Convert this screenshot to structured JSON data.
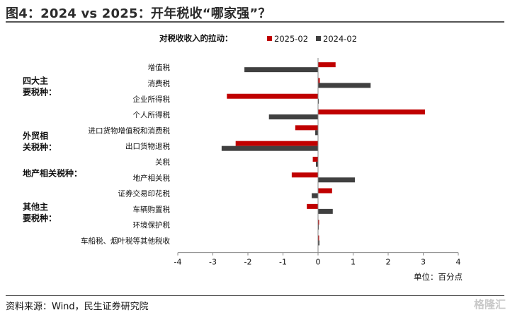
{
  "page": {
    "title": "图4：2024 vs 2025：开年税收“哪家强”？",
    "source": "资料来源：Wind，民生证券研究院",
    "watermark": "格隆汇"
  },
  "chart_data": {
    "type": "bar",
    "orientation": "horizontal",
    "title": "对税收收入的拉动：",
    "unit_label": "单位：百分点",
    "categories": [
      "增值税",
      "消费税",
      "企业所得税",
      "个人所得税",
      "进口货物增值税和消费税",
      "出口货物退税",
      "关税",
      "地产相关税",
      "证券交易印花税",
      "车辆购置税",
      "环境保护税",
      "车船税、烟叶税等其他税收"
    ],
    "series": [
      {
        "name": "2025-02",
        "color": "#C00000",
        "values": [
          0.5,
          0.05,
          -2.6,
          3.05,
          -0.65,
          -2.35,
          -0.15,
          -0.75,
          0.4,
          -0.32,
          0.03,
          0.03
        ]
      },
      {
        "name": "2024-02",
        "color": "#404040",
        "values": [
          -2.1,
          1.5,
          0.02,
          -1.4,
          -0.08,
          -2.75,
          -0.06,
          1.05,
          -0.18,
          0.42,
          0.02,
          0.04
        ]
      }
    ],
    "groups": [
      {
        "label_lines": [
          "四大主",
          "要税种："
        ],
        "first": 0,
        "last": 3
      },
      {
        "label_lines": [
          "外贸相",
          "关税种："
        ],
        "first": 4,
        "last": 6
      },
      {
        "label_lines": [
          "地产相关税种："
        ],
        "first": 7,
        "last": 7
      },
      {
        "label_lines": [
          "其他主",
          "要税种："
        ],
        "first": 8,
        "last": 11
      }
    ],
    "xlim": [
      -4,
      4
    ],
    "xticks": [
      "-4",
      "-3",
      "-2",
      "-1",
      "0",
      "1",
      "2",
      "3",
      "4"
    ],
    "grid": false,
    "legend_position": "top"
  }
}
